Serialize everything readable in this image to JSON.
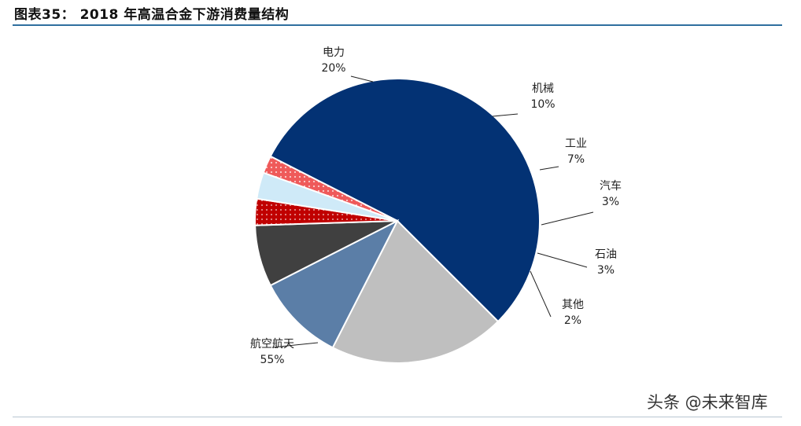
{
  "header": {
    "figure_title": "图表35： 2018 年高温合金下游消费量结构"
  },
  "watermark": "头条 @未来智库",
  "chart_data": {
    "type": "pie",
    "title": "图表35： 2018 年高温合金下游消费量结构",
    "slices": [
      {
        "name": "航空航天",
        "value": 55,
        "label": "55%",
        "color": "#033274"
      },
      {
        "name": "电力",
        "value": 20,
        "label": "20%",
        "color": "#bfbfbf"
      },
      {
        "name": "机械",
        "value": 10,
        "label": "10%",
        "color": "#5b7ea7"
      },
      {
        "name": "工业",
        "value": 7,
        "label": "7%",
        "color": "#404040"
      },
      {
        "name": "汽车",
        "value": 3,
        "label": "3%",
        "color": "#c00000"
      },
      {
        "name": "石油",
        "value": 3,
        "label": "3%",
        "color": "#cfeaf8"
      },
      {
        "name": "其他",
        "value": 2,
        "label": "2%",
        "color": "#ef5a5a"
      }
    ]
  }
}
